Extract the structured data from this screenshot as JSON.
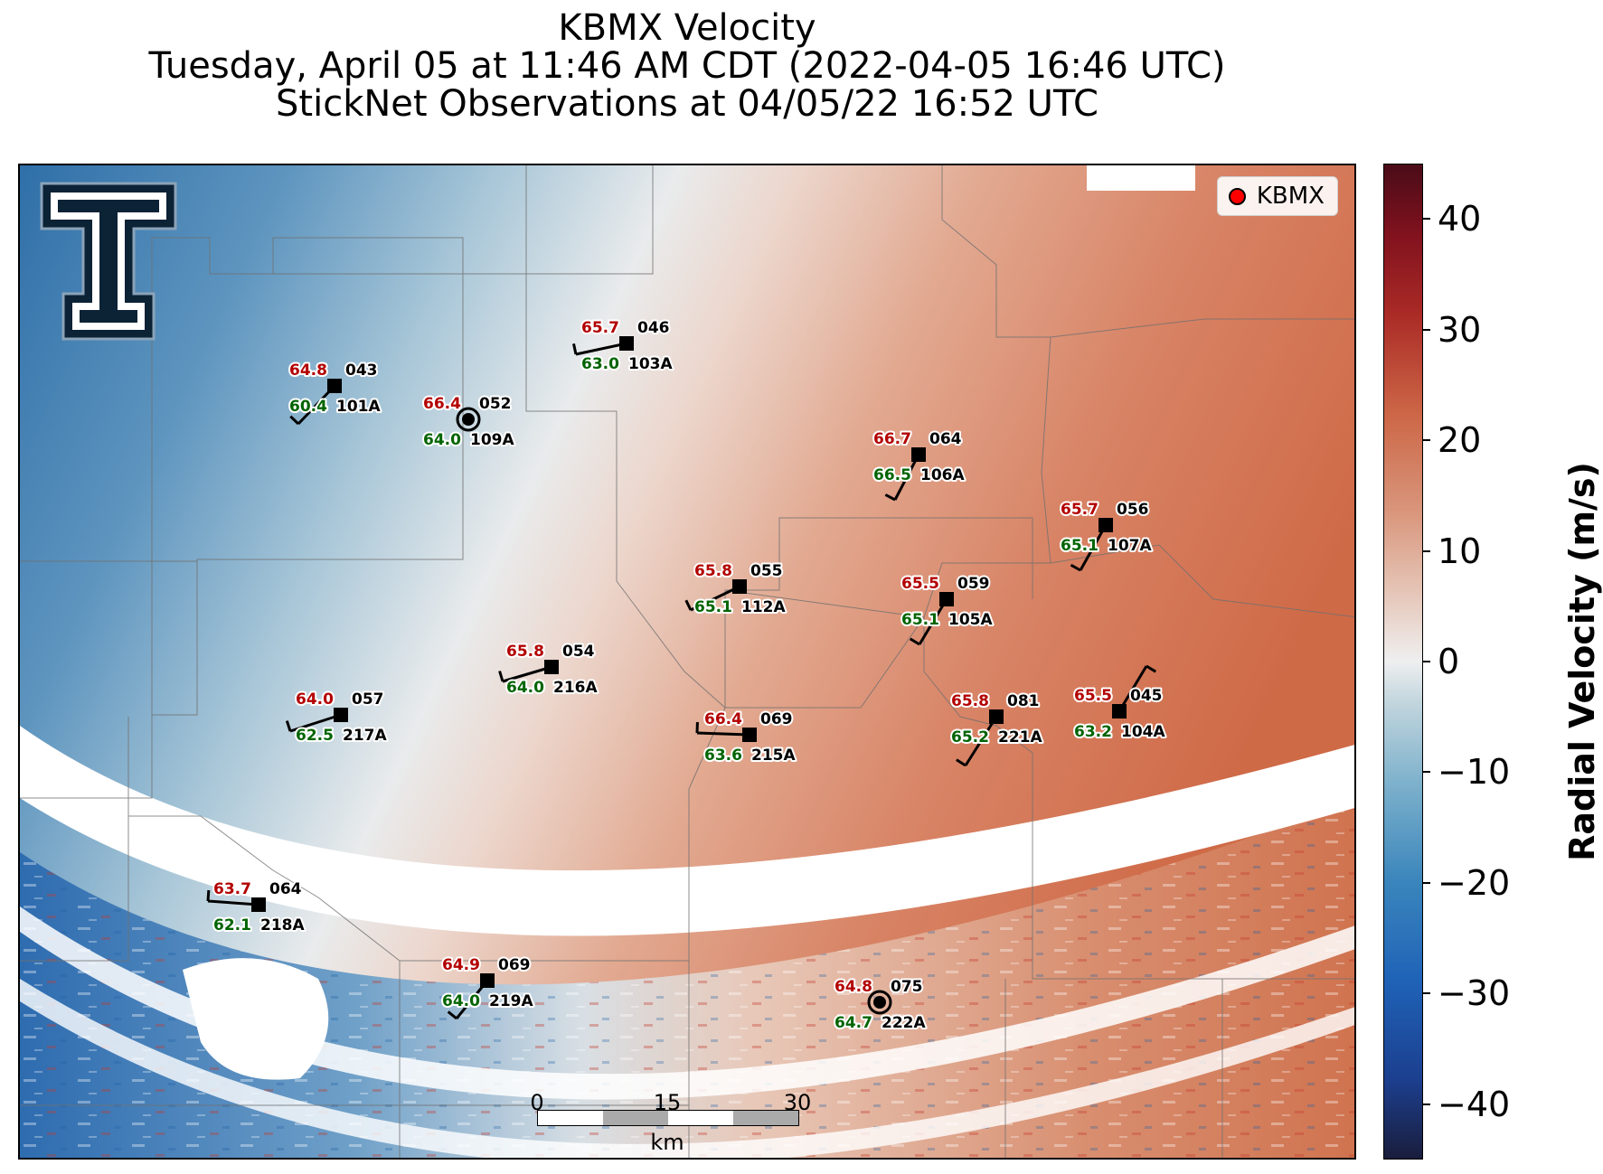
{
  "title": {
    "line1": "KBMX Velocity",
    "line2": "Tuesday, April 05 at 11:46 AM CDT (2022-04-05 16:46 UTC)",
    "line3": "StickNet Observations at 04/05/22 16:52 UTC"
  },
  "legend": {
    "label": "KBMX",
    "marker_color": "#ff0000"
  },
  "colorbar": {
    "title": "Radial Velocity (m/s)",
    "ticks": [
      40,
      30,
      20,
      10,
      0,
      -10,
      -20,
      -30,
      -40
    ],
    "range": [
      -45,
      45
    ],
    "tick_labels": [
      "40",
      "30",
      "20",
      "10",
      "0",
      "−10",
      "−20",
      "−30",
      "−40"
    ]
  },
  "scale_bar": {
    "labels": [
      "0",
      "15",
      "30"
    ],
    "unit": "km"
  },
  "logo": {
    "name": "texas-tech-double-t-logo"
  },
  "stations": [
    {
      "id": "101A",
      "red": "64.8",
      "green": "60.4",
      "dir": "043"
    },
    {
      "id": "109A",
      "red": "66.4",
      "green": "64.0",
      "dir": "052"
    },
    {
      "id": "103A",
      "red": "65.7",
      "green": "63.0",
      "dir": "046"
    },
    {
      "id": "106A",
      "red": "66.7",
      "green": "66.5",
      "dir": "064"
    },
    {
      "id": "107A",
      "red": "65.7",
      "green": "65.1",
      "dir": "056"
    },
    {
      "id": "112A",
      "red": "65.8",
      "green": "65.1",
      "dir": "055"
    },
    {
      "id": "105A",
      "red": "65.5",
      "green": "65.1",
      "dir": "059"
    },
    {
      "id": "216A",
      "red": "65.8",
      "green": "64.0",
      "dir": "054"
    },
    {
      "id": "217A",
      "red": "64.0",
      "green": "62.5",
      "dir": "057"
    },
    {
      "id": "215A",
      "red": "66.4",
      "green": "63.6",
      "dir": "069"
    },
    {
      "id": "221A",
      "red": "65.8",
      "green": "65.2",
      "dir": "081"
    },
    {
      "id": "104A",
      "red": "65.5",
      "green": "63.2",
      "dir": "045"
    },
    {
      "id": "218A",
      "red": "63.7",
      "green": "62.1",
      "dir": "064"
    },
    {
      "id": "219A",
      "red": "64.9",
      "green": "64.0",
      "dir": "069"
    },
    {
      "id": "222A",
      "red": "64.8",
      "green": "64.7",
      "dir": "075"
    }
  ]
}
